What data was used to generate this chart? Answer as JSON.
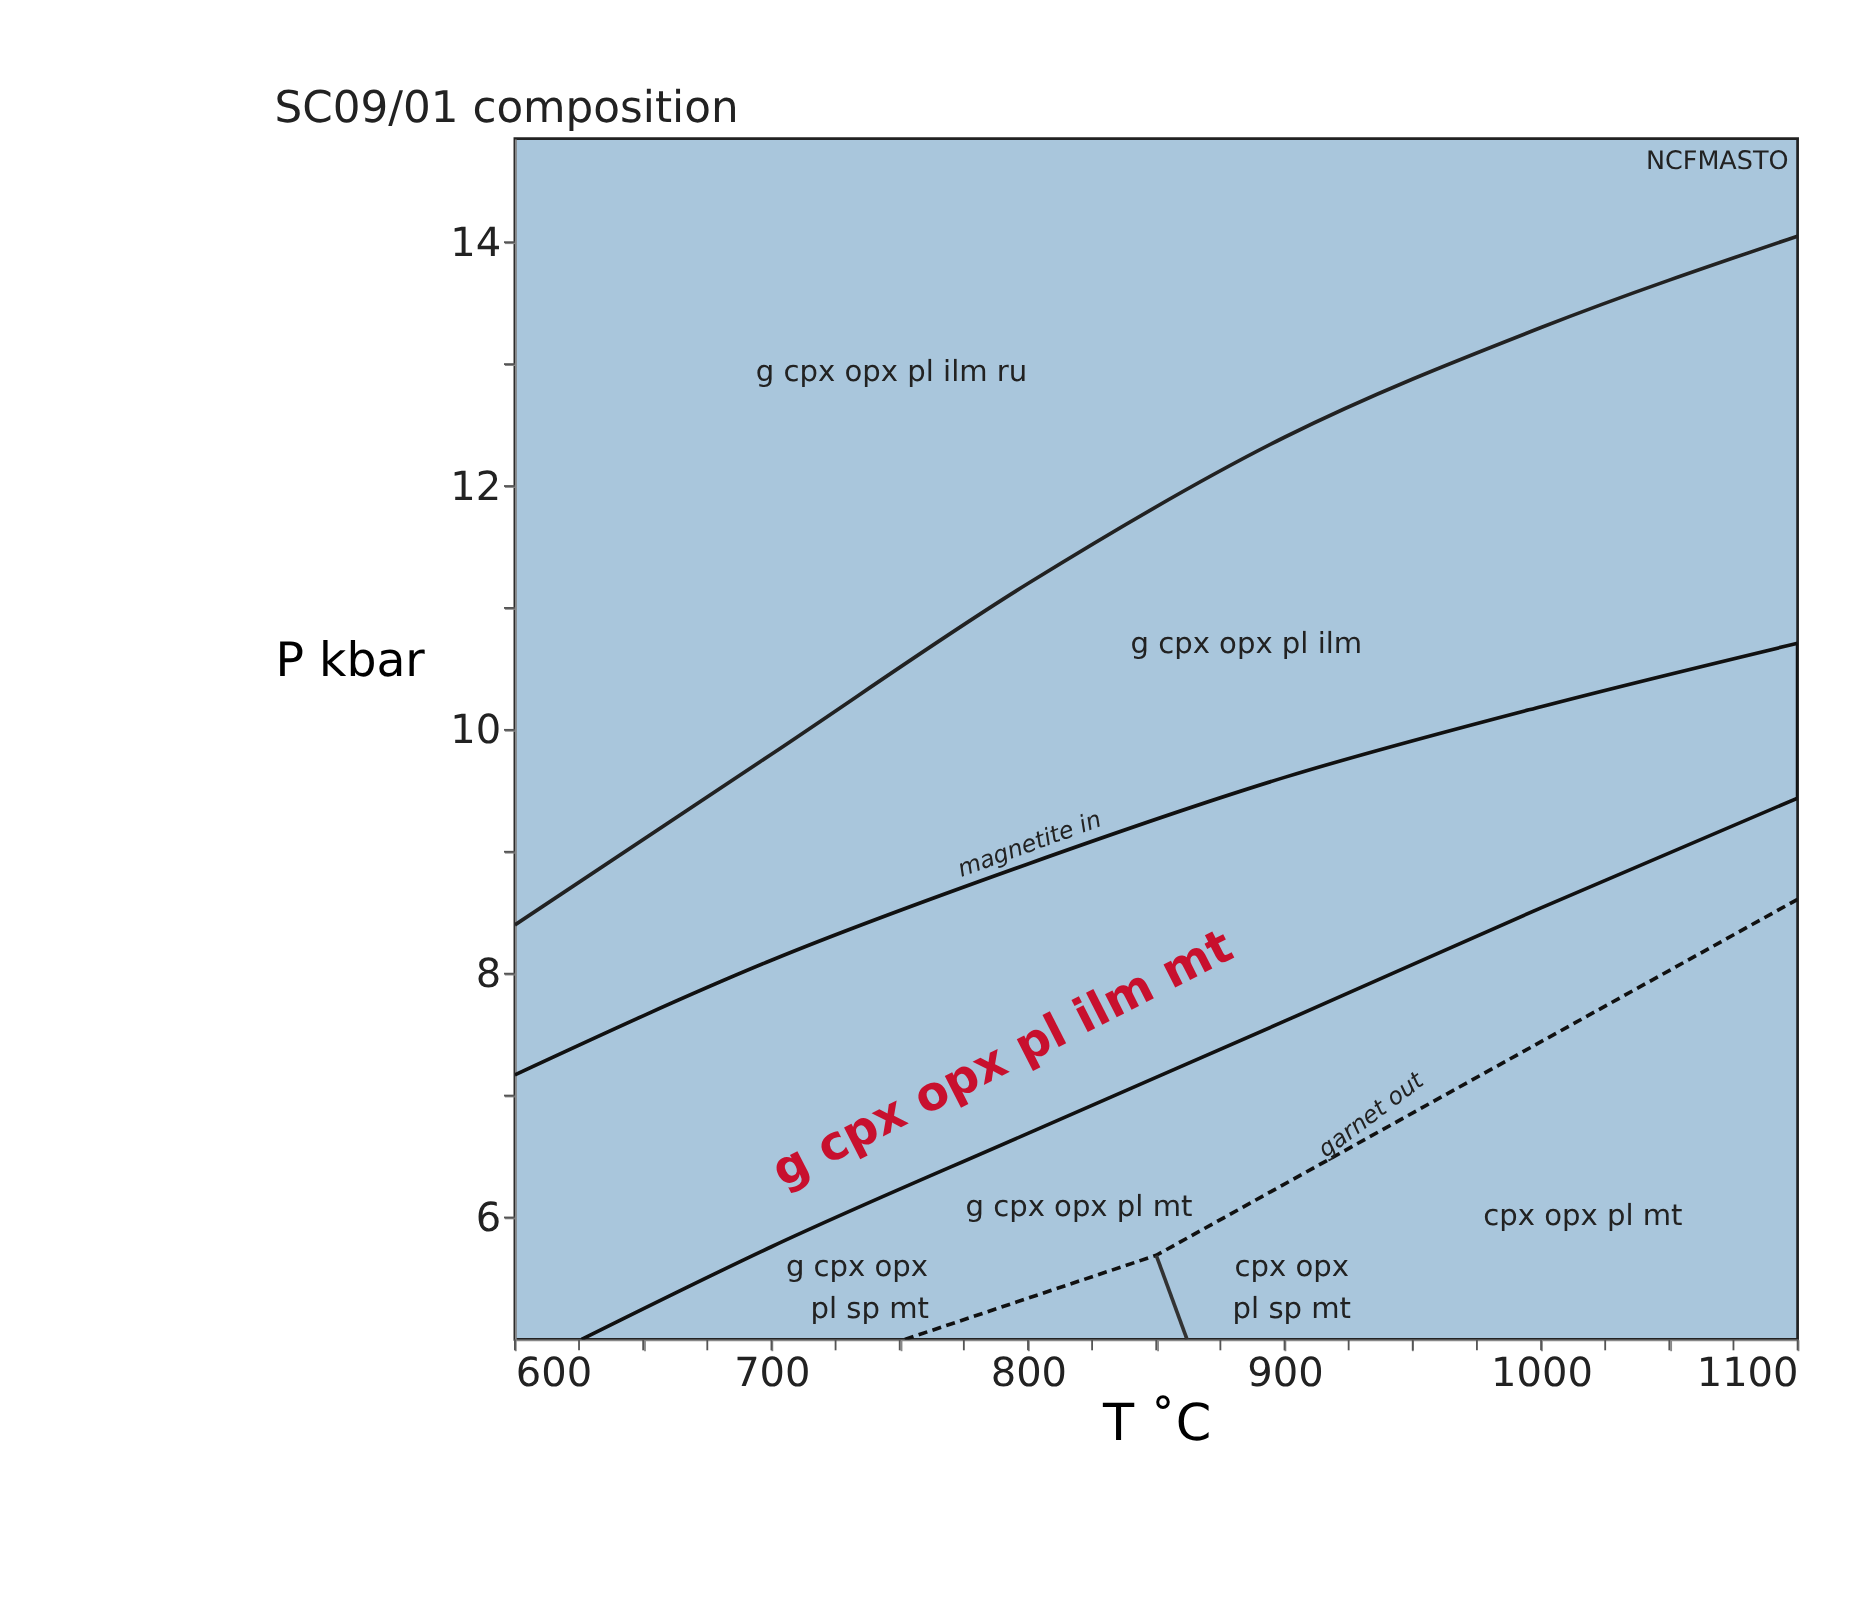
{
  "chart_data": {
    "type": "line",
    "title": "SC09/01 composition",
    "xlabel": "T ˚C",
    "ylabel": "P kbar",
    "xlim": [
      600,
      1100
    ],
    "ylim": [
      5,
      14.85
    ],
    "xticks": [
      600,
      {
        "value": 625,
        "label": null
      },
      {
        "value": 650,
        "label": null
      },
      {
        "value": 675,
        "label": null
      },
      700,
      {
        "value": 725,
        "label": null
      },
      {
        "value": 750,
        "label": null
      },
      {
        "value": 775,
        "label": null
      },
      800,
      {
        "value": 825,
        "label": null
      },
      {
        "value": 850,
        "label": null
      },
      {
        "value": 875,
        "label": null
      },
      900,
      {
        "value": 925,
        "label": null
      },
      {
        "value": 950,
        "label": null
      },
      {
        "value": 975,
        "label": null
      },
      1000,
      {
        "value": 1025,
        "label": null
      },
      {
        "value": 1050,
        "label": null
      },
      {
        "value": 1075,
        "label": null
      },
      1100
    ],
    "yticks": [
      6,
      {
        "value": 7,
        "label": null
      },
      8,
      {
        "value": 9,
        "label": null
      },
      10,
      {
        "value": 11,
        "label": null
      },
      12,
      {
        "value": 13,
        "label": null
      },
      14
    ],
    "grid": false,
    "series": [
      {
        "type": "line",
        "color": "#222222",
        "line_style": "solid",
        "x": [
          600,
          700,
          800,
          900,
          1000,
          1100
        ],
        "values": [
          8.4,
          9.8,
          11.2,
          12.4,
          13.3,
          14.05
        ]
      },
      {
        "type": "line",
        "color": "#111111",
        "line_style": "solid",
        "x": [
          600,
          700,
          800,
          900,
          1000,
          1100
        ],
        "values": [
          7.17,
          8.11,
          8.9,
          9.61,
          10.19,
          10.71
        ]
      },
      {
        "type": "line",
        "color": "#111111",
        "line_style": "solid",
        "x": [
          626,
          700,
          800,
          900,
          1000,
          1100
        ],
        "values": [
          5,
          5.76,
          6.69,
          7.61,
          8.54,
          9.44
        ]
      },
      {
        "type": "line",
        "color": "#111111",
        "line_style": "solid",
        "x": [
          1100,
          1100
        ],
        "values": [
          9.44,
          10.71
        ]
      },
      {
        "type": "line",
        "color": "#111111",
        "line_style": "dashed",
        "x": [
          752,
          850,
          1100
        ],
        "values": [
          5,
          5.69,
          8.61
        ]
      },
      {
        "type": "line",
        "color": "#333333",
        "line_style": "solid",
        "x": [
          850,
          862
        ],
        "values": [
          5.69,
          5
        ]
      }
    ],
    "annotations": [
      {
        "text": "magnetite in",
        "x": 803,
        "y": 8.92
      },
      {
        "text": "garnet out",
        "x": 938,
        "y": 6.72
      },
      "g cpx opx pl ilm mt",
      "g cpx opx pl ilm ru",
      "g cpx opx pl ilm",
      "g cpx opx pl mt",
      "cpx opx pl mt",
      "g cpx opx",
      "pl sp mt",
      "cpx opx",
      "pl sp mt",
      "NCFMASTO"
    ]
  }
}
